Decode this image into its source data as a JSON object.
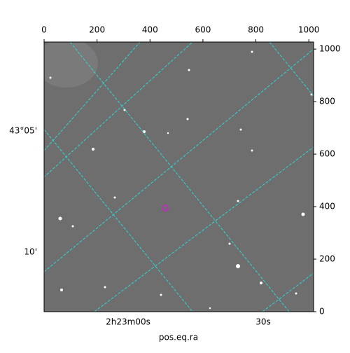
{
  "chart_data": {
    "type": "image",
    "xlim": [
      0,
      1018
    ],
    "ylim": [
      0,
      1027
    ],
    "xticks": [
      0,
      200,
      400,
      600,
      800,
      1000
    ],
    "yticks": [
      0,
      200,
      400,
      600,
      800,
      1000
    ],
    "ra_labels": [
      "2h23m00s",
      "30s"
    ],
    "dec_labels": [
      "43°05'",
      "10'"
    ],
    "xlabel": "pos.eq.ra"
  }
}
